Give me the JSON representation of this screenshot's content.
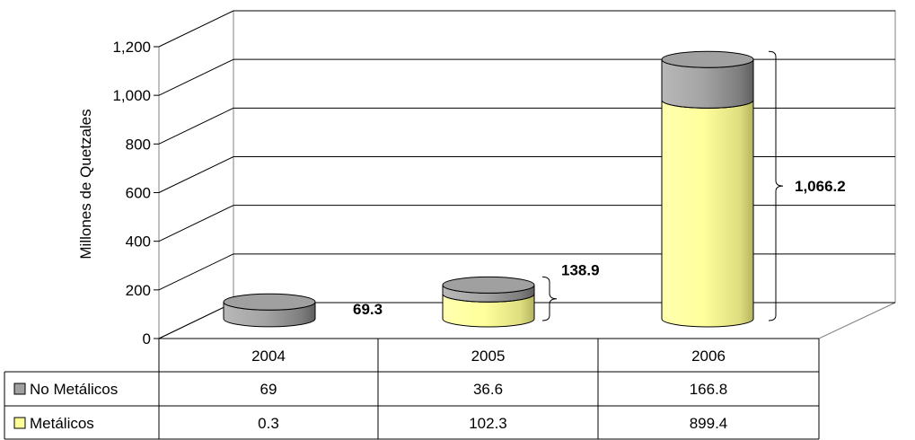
{
  "chart_data": {
    "type": "bar",
    "bar_shape": "cylinder",
    "stacked": true,
    "three_d": true,
    "title": "",
    "xlabel": "",
    "ylabel": "Millones de Quetzales",
    "ylim": [
      0,
      1200
    ],
    "yticks": [
      0,
      200,
      400,
      600,
      800,
      1000,
      1200
    ],
    "ytick_labels": [
      "0",
      "200",
      "400",
      "600",
      "800",
      "1,000",
      "1,200"
    ],
    "grid": true,
    "legend": "data-table-left",
    "categories": [
      "2004",
      "2005",
      "2006"
    ],
    "series": [
      {
        "name": "Metálicos",
        "values": [
          0.3,
          102.3,
          899.4
        ],
        "labels": [
          "0.3",
          "102.3",
          "899.4"
        ],
        "color": "#ffff99"
      },
      {
        "name": "No Metálicos",
        "values": [
          69,
          36.6,
          166.8
        ],
        "labels": [
          "69",
          "36.6",
          "166.8"
        ],
        "color": "#a0a0a0"
      }
    ],
    "annotations": [
      "69.3",
      "138.9",
      "1,066.2"
    ]
  },
  "colors": {
    "grid": "#000000",
    "metalicos": "#ffff99",
    "no_metalicos": "#a0a0a0"
  }
}
